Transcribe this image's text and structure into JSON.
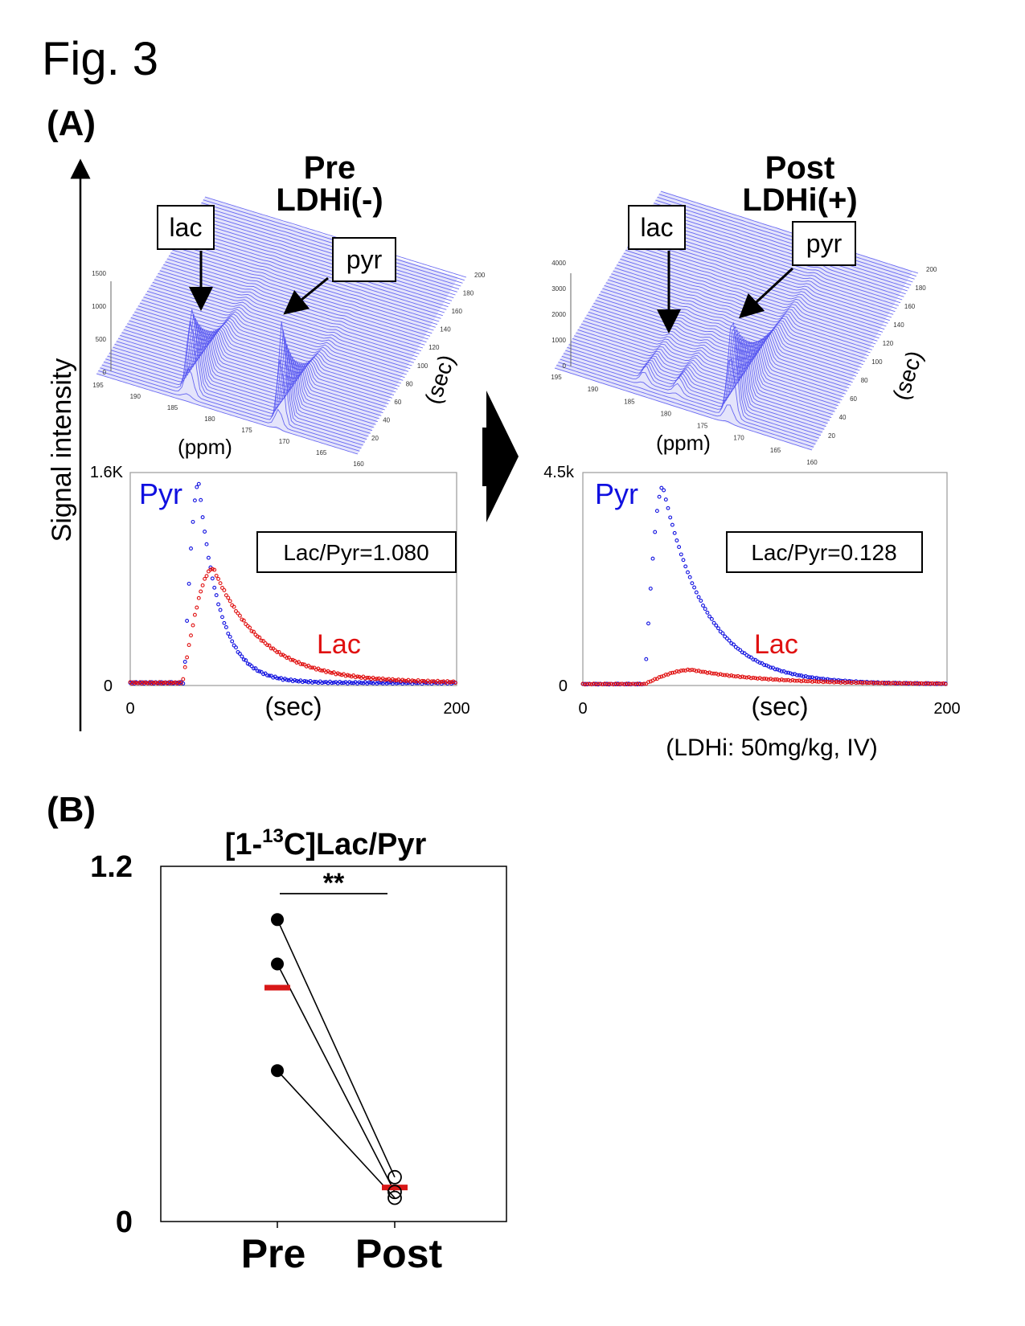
{
  "figure_title": "Fig. 3",
  "panel_a_label": "(A)",
  "panel_b_label": "(B)",
  "y_axis_label": "Signal intensity",
  "colors": {
    "pyr": "#1010e0",
    "lac": "#e01010",
    "surface": "#5050f0",
    "mean": "#d81818"
  },
  "pre": {
    "title_line1": "Pre",
    "title_line2": "LDHi(-)",
    "lac_box": "lac",
    "pyr_box": "pyr",
    "ppm_label": "(ppm)",
    "sec_label": "(sec)",
    "z_ticks": [
      "1500",
      "1000",
      "500",
      "0"
    ],
    "ppm_ticks": [
      "195",
      "190",
      "185",
      "180",
      "175",
      "170",
      "165",
      "160"
    ],
    "sec_ticks": [
      "200",
      "180",
      "160",
      "140",
      "120",
      "100",
      "80",
      "60",
      "40",
      "20"
    ]
  },
  "post": {
    "title_line1": "Post",
    "title_line2": "LDHi(+)",
    "lac_box": "lac",
    "pyr_box": "pyr",
    "ppm_label": "(ppm)",
    "sec_label": "(sec)",
    "z_ticks": [
      "4000",
      "3000",
      "2000",
      "1000",
      "0"
    ],
    "ppm_ticks": [
      "195",
      "190",
      "185",
      "180",
      "175",
      "170",
      "165",
      "160"
    ],
    "sec_ticks": [
      "200",
      "180",
      "160",
      "140",
      "120",
      "100",
      "80",
      "60",
      "40",
      "20"
    ],
    "dose_note": "(LDHi: 50mg/kg, IV)"
  },
  "chart_data": [
    {
      "type": "scatter",
      "id": "pre_time_course",
      "title": "Pre LDHi(-)",
      "xlabel": "(sec)",
      "ylabel": "Signal intensity",
      "xlim": [
        0,
        200
      ],
      "ylim": [
        0,
        1600
      ],
      "x_tick_labels": [
        "0",
        "200"
      ],
      "y_tick_labels": [
        "0",
        "1.6K"
      ],
      "annotation": "Lac/Pyr=1.080",
      "series": [
        {
          "name": "Pyr",
          "color": "#1010e0",
          "baseline": 20,
          "onset": 33,
          "peak_time": 42,
          "peak_value": 1520,
          "decay": 13
        },
        {
          "name": "Lac",
          "color": "#e01010",
          "baseline": 20,
          "onset": 32,
          "peak_time": 51,
          "peak_value": 880,
          "decay": 30
        }
      ]
    },
    {
      "type": "scatter",
      "id": "post_time_course",
      "title": "Post LDHi(+)",
      "xlabel": "(sec)",
      "ylabel": "Signal intensity",
      "xlim": [
        0,
        200
      ],
      "ylim": [
        0,
        4500
      ],
      "x_tick_labels": [
        "0",
        "200"
      ],
      "y_tick_labels": [
        "0",
        "4.5k"
      ],
      "annotation": "Lac/Pyr=0.128",
      "series": [
        {
          "name": "Pyr",
          "color": "#1010e0",
          "baseline": 30,
          "onset": 34,
          "peak_time": 44,
          "peak_value": 4200,
          "decay": 24
        },
        {
          "name": "Lac",
          "color": "#e01010",
          "baseline": 30,
          "onset": 34,
          "peak_time": 60,
          "peak_value": 330,
          "decay": 40
        }
      ]
    },
    {
      "type": "scatter",
      "id": "lac_pyr_ratio",
      "title_prefix": "[1-",
      "title_sup": "13",
      "title_suffix": "C]Lac/Pyr",
      "categories": [
        "Pre",
        "Post"
      ],
      "ylim": [
        0,
        1.2
      ],
      "y_tick_labels": [
        "0",
        "1.2"
      ],
      "significance": "**",
      "pairs": [
        {
          "pre": 1.02,
          "post": 0.15
        },
        {
          "pre": 0.87,
          "post": 0.1
        },
        {
          "pre": 0.51,
          "post": 0.08
        }
      ],
      "means": {
        "pre": 0.79,
        "post": 0.115
      }
    }
  ]
}
